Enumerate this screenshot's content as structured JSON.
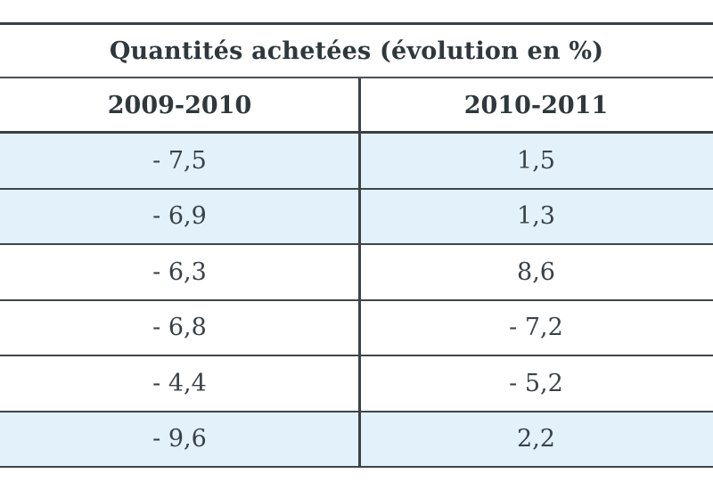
{
  "table": {
    "title": "Quantités achetées (évolution en %)",
    "columns": [
      "2009-2010",
      "2010-2011"
    ],
    "rows": [
      {
        "a": "- 7,5",
        "b": "1,5",
        "shaded": true
      },
      {
        "a": "- 6,9",
        "b": "1,3",
        "shaded": true
      },
      {
        "a": "- 6,3",
        "b": "8,6",
        "shaded": false
      },
      {
        "a": "- 6,8",
        "b": "- 7,2",
        "shaded": false
      },
      {
        "a": "- 4,4",
        "b": "- 5,2",
        "shaded": false
      },
      {
        "a": "- 9,6",
        "b": "2,2",
        "shaded": true
      }
    ]
  },
  "colors": {
    "shaded_row": "#e3f1fb",
    "rule": "#3a3f43",
    "text": "#2f383d"
  }
}
